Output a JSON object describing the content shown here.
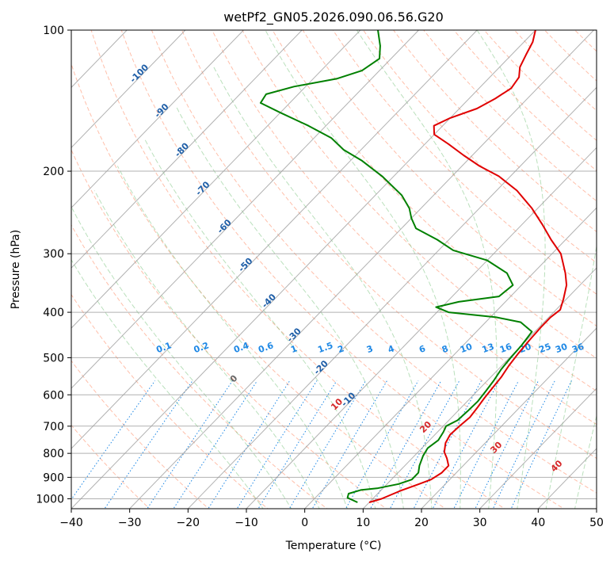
{
  "chart_data": {
    "type": "line",
    "diagram": "skew-T log-P",
    "title": "wetPf2_GN05.2026.090.06.56.G20",
    "xlabel": "Temperature (°C)",
    "ylabel": "Pressure (hPa)",
    "xlim": [
      -40,
      50
    ],
    "ylim": [
      1050,
      100
    ],
    "x_ticks": [
      "−40",
      "−30",
      "−20",
      "−10",
      "0",
      "10",
      "20",
      "30",
      "40",
      "50"
    ],
    "y_ticks": [
      "100",
      "200",
      "300",
      "400",
      "500",
      "600",
      "700",
      "800",
      "900",
      "1000"
    ],
    "y_tick_values": [
      100,
      200,
      300,
      400,
      500,
      600,
      700,
      800,
      900,
      1000
    ],
    "isotherm_labels": [
      "-100",
      "-90",
      "-80",
      "-70",
      "-60",
      "-50",
      "-40",
      "-30",
      "-20",
      "-10"
    ],
    "mixing_ratio_labels": [
      "0.1",
      "0.2",
      "0.4",
      "0.6",
      "1",
      "1.5",
      "2",
      "3",
      "4",
      "6",
      "8",
      "10",
      "13",
      "16",
      "20",
      "25",
      "30",
      "36"
    ],
    "moist_adiabat_labels": [
      "0",
      "10",
      "20",
      "30",
      "40"
    ],
    "colors": {
      "temperature": "#e00000",
      "dewpoint": "#008000",
      "isotherm_label": "#1f5fa8",
      "mixing_ratio": "#1e88e5",
      "moist_label": "#d62728",
      "zero_label": "#666666",
      "dry_adiabat": "#ff8a65",
      "moist_adiabat": "#66bb6a",
      "grid": "#9e9e9e"
    },
    "series": [
      {
        "name": "Temperature",
        "points": [
          [
            1018,
            10
          ],
          [
            1000,
            11.5
          ],
          [
            960,
            13.5
          ],
          [
            930,
            15.5
          ],
          [
            910,
            16.8
          ],
          [
            880,
            17.5
          ],
          [
            850,
            17.5
          ],
          [
            820,
            16
          ],
          [
            795,
            14.5
          ],
          [
            760,
            13.2
          ],
          [
            730,
            12.6
          ],
          [
            700,
            12.8
          ],
          [
            670,
            13.1
          ],
          [
            640,
            12.8
          ],
          [
            610,
            12.4
          ],
          [
            580,
            12.1
          ],
          [
            550,
            11.8
          ],
          [
            520,
            11.2
          ],
          [
            490,
            10.8
          ],
          [
            460,
            10.5
          ],
          [
            430,
            10.3
          ],
          [
            410,
            10.3
          ],
          [
            395,
            10.7
          ],
          [
            375,
            9.5
          ],
          [
            350,
            7.7
          ],
          [
            330,
            5.5
          ],
          [
            300,
            1.5
          ],
          [
            280,
            -2.5
          ],
          [
            260,
            -6.5
          ],
          [
            240,
            -11
          ],
          [
            220,
            -16.5
          ],
          [
            205,
            -22
          ],
          [
            195,
            -27
          ],
          [
            185,
            -31.5
          ],
          [
            175,
            -36
          ],
          [
            167,
            -40
          ],
          [
            160,
            -41.5
          ],
          [
            154,
            -40
          ],
          [
            147,
            -37
          ],
          [
            140,
            -35.5
          ],
          [
            133,
            -34.5
          ],
          [
            126,
            -35
          ],
          [
            120,
            -36.5
          ],
          [
            113,
            -37.5
          ],
          [
            106,
            -38.5
          ],
          [
            100,
            -40
          ]
        ]
      },
      {
        "name": "Dewpoint",
        "points": [
          [
            1018,
            8
          ],
          [
            995,
            5.5
          ],
          [
            975,
            5
          ],
          [
            958,
            6.5
          ],
          [
            950,
            9
          ],
          [
            930,
            12
          ],
          [
            910,
            13.5
          ],
          [
            880,
            13.5
          ],
          [
            850,
            12.5
          ],
          [
            810,
            11.5
          ],
          [
            780,
            11
          ],
          [
            750,
            11.5
          ],
          [
            720,
            11
          ],
          [
            700,
            10.5
          ],
          [
            680,
            11.5
          ],
          [
            650,
            11.7
          ],
          [
            620,
            11.8
          ],
          [
            590,
            11.5
          ],
          [
            560,
            11.1
          ],
          [
            530,
            10.5
          ],
          [
            500,
            10.2
          ],
          [
            470,
            10
          ],
          [
            440,
            9.5
          ],
          [
            420,
            6
          ],
          [
            410,
            1
          ],
          [
            400,
            -8
          ],
          [
            390,
            -11
          ],
          [
            380,
            -8
          ],
          [
            370,
            -2
          ],
          [
            350,
            -1.5
          ],
          [
            330,
            -4.5
          ],
          [
            310,
            -10
          ],
          [
            295,
            -17.5
          ],
          [
            280,
            -22
          ],
          [
            265,
            -27.5
          ],
          [
            252,
            -30
          ],
          [
            240,
            -32
          ],
          [
            225,
            -35.5
          ],
          [
            205,
            -42
          ],
          [
            190,
            -48
          ],
          [
            180,
            -53
          ],
          [
            170,
            -57
          ],
          [
            160,
            -63
          ],
          [
            150,
            -70
          ],
          [
            143,
            -75
          ],
          [
            137,
            -75.5
          ],
          [
            132,
            -72
          ],
          [
            127,
            -66
          ],
          [
            122,
            -63
          ],
          [
            115,
            -62
          ],
          [
            108,
            -64
          ],
          [
            100,
            -67
          ]
        ]
      }
    ]
  }
}
